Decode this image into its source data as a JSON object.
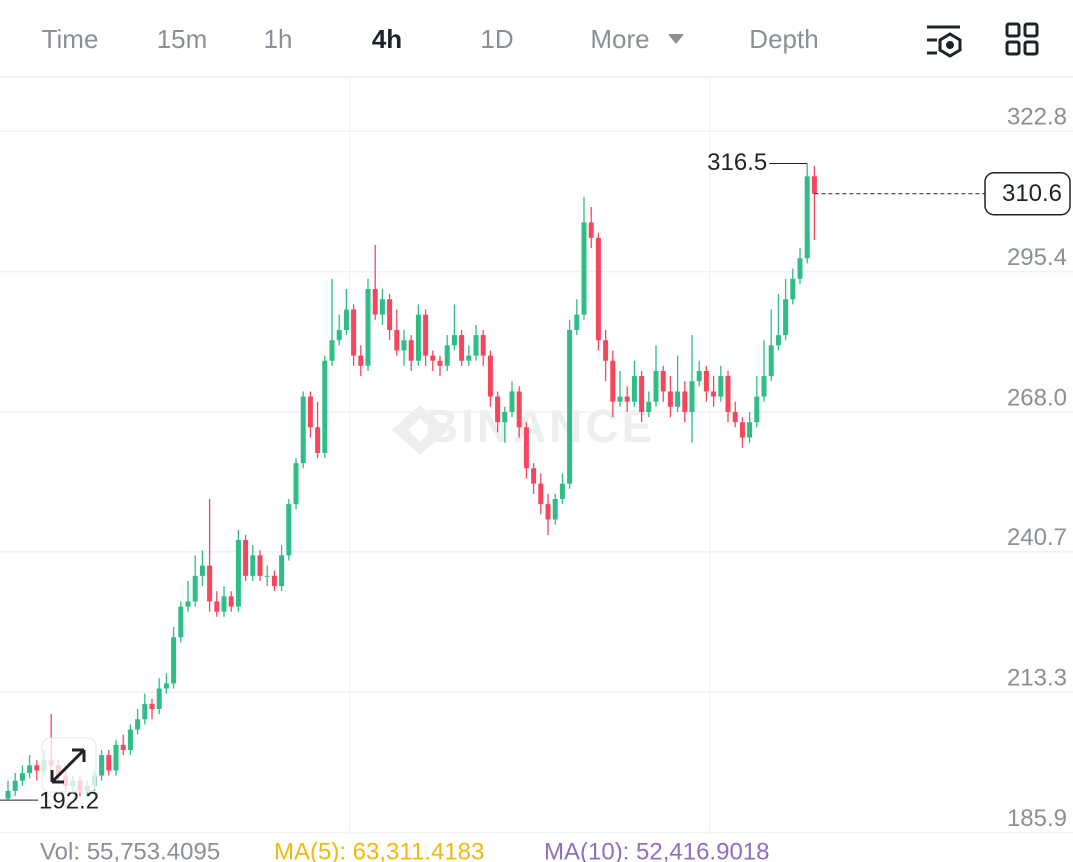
{
  "tabs": [
    "Time",
    "15m",
    "1h",
    "4h",
    "1D",
    "More",
    "Depth"
  ],
  "active_tab": "4h",
  "chart_data": {
    "type": "candlestick",
    "watermark": "BINANCE",
    "up_color": "#2ebd85",
    "down_color": "#f6465d",
    "ylim": [
      185.4,
      333.2
    ],
    "yticks": [
      322.8,
      295.4,
      {
        "value": 268,
        "label": "268.0"
      },
      240.7,
      213.3,
      185.9
    ],
    "grid": true,
    "candles": [
      [
        192.5,
        196,
        192.2,
        194
      ],
      [
        194,
        197.5,
        193,
        196
      ],
      [
        196,
        199,
        195,
        197.5
      ],
      [
        197.5,
        201,
        196.5,
        199
      ],
      [
        199,
        200,
        196,
        198
      ],
      [
        198,
        202,
        197,
        200
      ],
      [
        200,
        209,
        198,
        199
      ],
      [
        199,
        200,
        195.5,
        197
      ],
      [
        197,
        198,
        194,
        195
      ],
      [
        195,
        197,
        193.5,
        196
      ],
      [
        196,
        197,
        193,
        194
      ],
      [
        194,
        196,
        193,
        195
      ],
      [
        195,
        198,
        194,
        197
      ],
      [
        197,
        202,
        196,
        201
      ],
      [
        201,
        202,
        197,
        198
      ],
      [
        198,
        204,
        197,
        203
      ],
      [
        203,
        205,
        201,
        202
      ],
      [
        202,
        207,
        201,
        206
      ],
      [
        206,
        210,
        205,
        208
      ],
      [
        208,
        213,
        207,
        211
      ],
      [
        211,
        212,
        208,
        210
      ],
      [
        210,
        216,
        209,
        214
      ],
      [
        214,
        217,
        213,
        215
      ],
      [
        215,
        226,
        214,
        224
      ],
      [
        224,
        231,
        223,
        230
      ],
      [
        230,
        235,
        229,
        231
      ],
      [
        231,
        240,
        230,
        236
      ],
      [
        236,
        241,
        234,
        238
      ],
      [
        238,
        251,
        229,
        231
      ],
      [
        231,
        233,
        228,
        229
      ],
      [
        229,
        234,
        228,
        232
      ],
      [
        232,
        233,
        229,
        230
      ],
      [
        230,
        245,
        229,
        243
      ],
      [
        243,
        244,
        235,
        236
      ],
      [
        236,
        242,
        235,
        240
      ],
      [
        240,
        241,
        235,
        236
      ],
      [
        236,
        238,
        234,
        236
      ],
      [
        236,
        237,
        233,
        234
      ],
      [
        234,
        242,
        233,
        240
      ],
      [
        240,
        251,
        239,
        250
      ],
      [
        250,
        259,
        249,
        258
      ],
      [
        258,
        272,
        257,
        271
      ],
      [
        271,
        272,
        263,
        265
      ],
      [
        265,
        270,
        259,
        260
      ],
      [
        260,
        279,
        259,
        278
      ],
      [
        278,
        294,
        277,
        282
      ],
      [
        282,
        287,
        281,
        284
      ],
      [
        284,
        292,
        283,
        288
      ],
      [
        288,
        289,
        277,
        279
      ],
      [
        279,
        281,
        275,
        277
      ],
      [
        277,
        294,
        276,
        292
      ],
      [
        292,
        300.6,
        286,
        287
      ],
      [
        287,
        292,
        285,
        290
      ],
      [
        290,
        291,
        282,
        284
      ],
      [
        284,
        288,
        279,
        280
      ],
      [
        280,
        284,
        277,
        282
      ],
      [
        282,
        283,
        276,
        278
      ],
      [
        278,
        289,
        277,
        287
      ],
      [
        287,
        288,
        277,
        279
      ],
      [
        279,
        280,
        276,
        278
      ],
      [
        278,
        279,
        275,
        277
      ],
      [
        277,
        283,
        276,
        281
      ],
      [
        281,
        289,
        280,
        283
      ],
      [
        283,
        284,
        277,
        278
      ],
      [
        278,
        281,
        277,
        279
      ],
      [
        279,
        285,
        278,
        283
      ],
      [
        283,
        284,
        277,
        279
      ],
      [
        279,
        280,
        269,
        271
      ],
      [
        271,
        272,
        264,
        266
      ],
      [
        266,
        269,
        262,
        268
      ],
      [
        268,
        274,
        267,
        272
      ],
      [
        272,
        273,
        263,
        265
      ],
      [
        265,
        266,
        255,
        257
      ],
      [
        257,
        258,
        252,
        254
      ],
      [
        254,
        256,
        248,
        250
      ],
      [
        250,
        252,
        244,
        247
      ],
      [
        247,
        252,
        246,
        251
      ],
      [
        251,
        256,
        250,
        254
      ],
      [
        254,
        286,
        253,
        284
      ],
      [
        284,
        290,
        283,
        287
      ],
      [
        287,
        310,
        286,
        305
      ],
      [
        305,
        308,
        300,
        302
      ],
      [
        302,
        303,
        280,
        282
      ],
      [
        282,
        284,
        274,
        278
      ],
      [
        278,
        280,
        267,
        270
      ],
      [
        270,
        276,
        269,
        271
      ],
      [
        271,
        273,
        268,
        270
      ],
      [
        270,
        278,
        269,
        275
      ],
      [
        275,
        276,
        266,
        268
      ],
      [
        268,
        272,
        267,
        270
      ],
      [
        270,
        281,
        269,
        276
      ],
      [
        276,
        277,
        270,
        272
      ],
      [
        272,
        275,
        267,
        269
      ],
      [
        269,
        279,
        268,
        272
      ],
      [
        272,
        274,
        266,
        268
      ],
      [
        268,
        283,
        262,
        274
      ],
      [
        274,
        278,
        273,
        276
      ],
      [
        276,
        277,
        270,
        272
      ],
      [
        272,
        275,
        269,
        271
      ],
      [
        271,
        277,
        270,
        275
      ],
      [
        275,
        276,
        266,
        268
      ],
      [
        268,
        270,
        265,
        266
      ],
      [
        266,
        267,
        261,
        263
      ],
      [
        263,
        268,
        262,
        266
      ],
      [
        266,
        275,
        265,
        271
      ],
      [
        271,
        282,
        270,
        275
      ],
      [
        275,
        288,
        274,
        281
      ],
      [
        281,
        291,
        280,
        283
      ],
      [
        283,
        294,
        282,
        290
      ],
      [
        290,
        296,
        289,
        294
      ],
      [
        294,
        300,
        293,
        298
      ],
      [
        298,
        316.5,
        297,
        314
      ],
      [
        314,
        316,
        301.6,
        310.6
      ]
    ],
    "indicators": [
      {
        "text": "Vol: 55,753.4095",
        "color": "#8a8f98"
      },
      {
        "text": "MA(5): 63,311.4183",
        "color": "#f0b90b"
      },
      {
        "text": "MA(10): 52,416.9018",
        "color": "#8e6fc1"
      }
    ]
  }
}
